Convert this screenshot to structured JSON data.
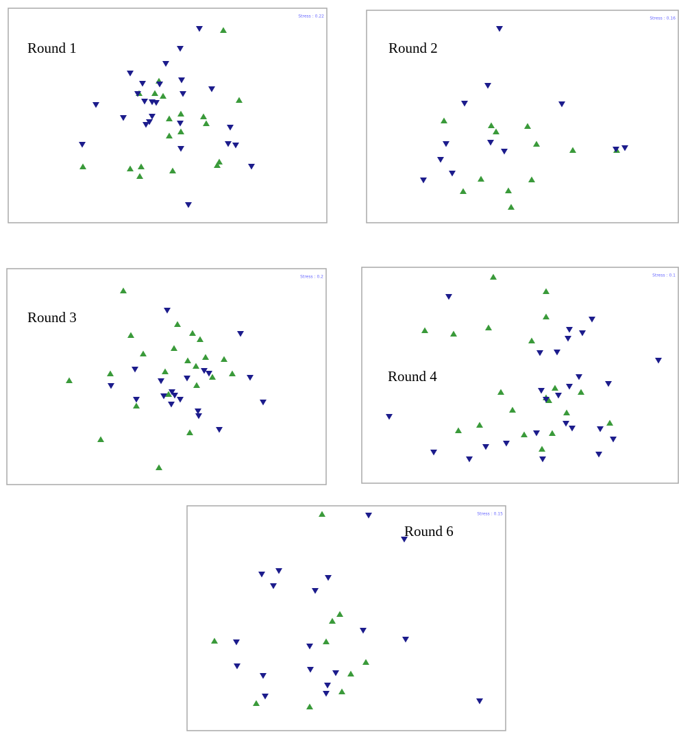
{
  "chart_data": [
    {
      "type": "scatter",
      "title": "Round 1",
      "annotation": "Stress : 0.22",
      "xlim": [
        0,
        465
      ],
      "ylim": [
        0,
        313
      ],
      "series": [
        {
          "color": "#3a9a3a",
          "marker": "triangle-up",
          "x": [
            314,
            220,
            191,
            214,
            226,
            337,
            235,
            252,
            285,
            289,
            252,
            235,
            308,
            305,
            109,
            178,
            194,
            192,
            240
          ],
          "values": [
            281,
            207,
            189,
            189,
            185,
            179,
            152,
            159,
            155,
            145,
            133,
            127,
            89,
            84,
            82,
            79,
            82,
            68,
            76
          ]
        },
        {
          "color": "#1c1c8c",
          "marker": "triangle-down",
          "x": [
            279,
            251,
            230,
            178,
            253,
            196,
            221,
            297,
            255,
            128,
            210,
            216,
            189,
            199,
            168,
            210,
            206,
            201,
            251,
            324,
            252,
            321,
            332,
            108,
            355,
            263
          ],
          "values": [
            283,
            254,
            232,
            218,
            208,
            203,
            202,
            195,
            188,
            172,
            176,
            175,
            188,
            177,
            153,
            155,
            147,
            143,
            145,
            139,
            108,
            115,
            113,
            114,
            82,
            26
          ]
        }
      ]
    },
    {
      "type": "scatter",
      "title": "Round 2",
      "annotation": "Stress : 0.16",
      "xlim": [
        0,
        455
      ],
      "ylim": [
        0,
        310
      ],
      "series": [
        {
          "color": "#3a9a3a",
          "marker": "triangle-up",
          "x": [
            113,
            182,
            189,
            235,
            248,
            301,
            167,
            241,
            141,
            207,
            211,
            365
          ],
          "values": [
            149,
            142,
            133,
            141,
            115,
            106,
            64,
            63,
            46,
            47,
            23,
            106
          ]
        },
        {
          "color": "#1c1c8c",
          "marker": "triangle-down",
          "x": [
            194,
            177,
            143,
            285,
            116,
            181,
            201,
            108,
            125,
            83,
            377,
            364
          ],
          "values": [
            283,
            200,
            174,
            173,
            115,
            117,
            104,
            92,
            72,
            62,
            109,
            107
          ]
        }
      ]
    },
    {
      "type": "scatter",
      "title": "Round 3",
      "annotation": "Stress : 0.2",
      "xlim": [
        0,
        466
      ],
      "ylim": [
        0,
        315
      ],
      "series": [
        {
          "color": "#3a9a3a",
          "marker": "triangle-up",
          "x": [
            170,
            249,
            181,
            271,
            282,
            244,
            199,
            264,
            290,
            317,
            276,
            231,
            300,
            329,
            151,
            91,
            236,
            277,
            189,
            267,
            137,
            222
          ],
          "values": [
            283,
            234,
            218,
            221,
            212,
            199,
            191,
            181,
            186,
            183,
            173,
            165,
            157,
            162,
            162,
            152,
            132,
            145,
            115,
            76,
            66,
            25
          ]
        },
        {
          "color": "#1c1c8c",
          "marker": "triangle-down",
          "x": [
            234,
            341,
            187,
            288,
            295,
            355,
            225,
            263,
            152,
            241,
            245,
            229,
            253,
            189,
            240,
            374,
            279,
            280,
            310
          ],
          "values": [
            254,
            220,
            168,
            166,
            162,
            156,
            151,
            155,
            144,
            135,
            130,
            129,
            124,
            124,
            117,
            120,
            107,
            100,
            80
          ]
        }
      ]
    },
    {
      "type": "scatter",
      "title": "Round 4",
      "annotation": "Stress : 0.1",
      "xlim": [
        0,
        462
      ],
      "ylim": [
        0,
        315
      ],
      "series": [
        {
          "color": "#3a9a3a",
          "marker": "triangle-up",
          "x": [
            192,
            269,
            92,
            134,
            185,
            269,
            248,
            282,
            320,
            203,
            269,
            220,
            299,
            172,
            141,
            362,
            237,
            278,
            263,
            273
          ],
          "values": [
            301,
            280,
            223,
            218,
            227,
            243,
            208,
            139,
            133,
            133,
            125,
            107,
            103,
            85,
            77,
            88,
            71,
            73,
            50,
            121
          ]
        },
        {
          "color": "#1c1c8c",
          "marker": "triangle-down",
          "x": [
            127,
            336,
            303,
            322,
            301,
            260,
            285,
            433,
            317,
            360,
            303,
            262,
            287,
            269,
            40,
            255,
            298,
            307,
            348,
            367,
            211,
            181,
            105,
            157,
            264,
            346
          ],
          "values": [
            272,
            239,
            224,
            219,
            211,
            190,
            191,
            179,
            155,
            145,
            141,
            135,
            128,
            122,
            97,
            73,
            87,
            80,
            79,
            64,
            58,
            53,
            45,
            35,
            35,
            42
          ]
        }
      ]
    },
    {
      "type": "scatter",
      "title": "Round 6",
      "annotation": "Stress : 0.15",
      "xlim": [
        0,
        465
      ],
      "ylim": [
        0,
        328
      ],
      "series": [
        {
          "color": "#3a9a3a",
          "marker": "triangle-up",
          "x": [
            197,
            223,
            212,
            40,
            203,
            261,
            239,
            226,
            101,
            179
          ],
          "values": [
            316,
            170,
            160,
            131,
            130,
            100,
            83,
            57,
            40,
            35
          ]
        },
        {
          "color": "#1c1c8c",
          "marker": "triangle-down",
          "x": [
            265,
            317,
            134,
            109,
            206,
            126,
            187,
            257,
            319,
            72,
            179,
            73,
            180,
            217,
            111,
            205,
            203,
            114,
            427
          ],
          "values": [
            314,
            279,
            233,
            228,
            223,
            211,
            204,
            146,
            133,
            129,
            123,
            94,
            89,
            84,
            80,
            66,
            54,
            50,
            43
          ]
        }
      ]
    }
  ]
}
